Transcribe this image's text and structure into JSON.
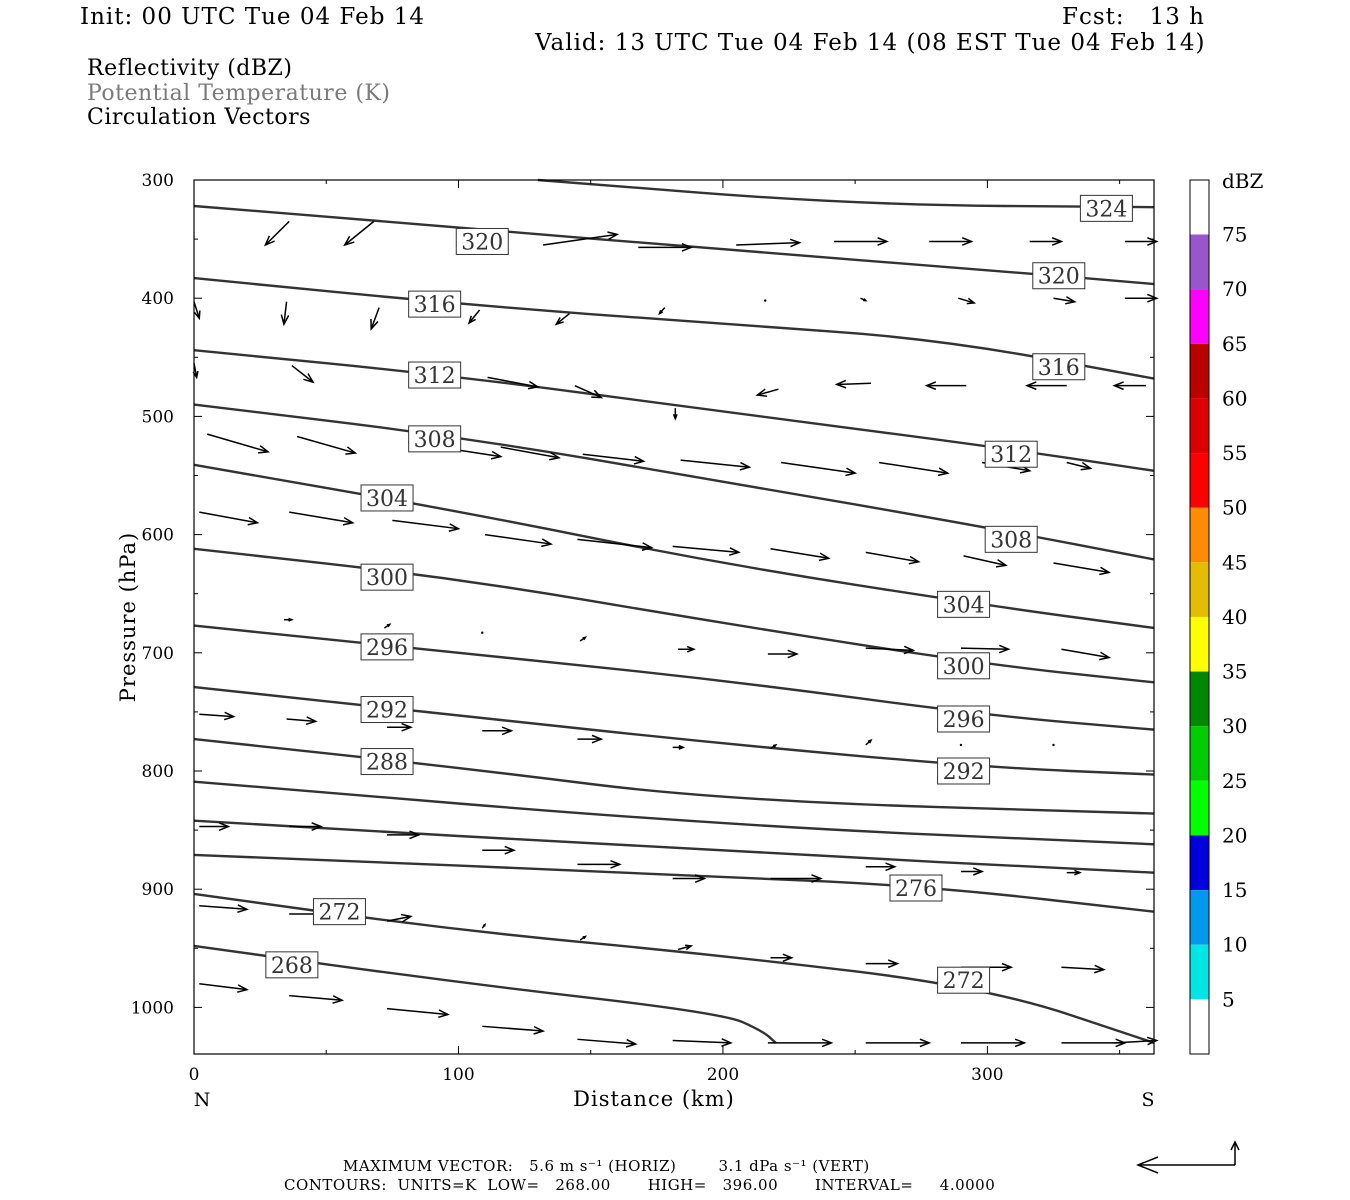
{
  "header": {
    "init": "Init: 00 UTC Tue 04 Feb 14",
    "fcst": "Fcst:   13 h",
    "valid": "Valid: 13 UTC Tue 04 Feb 14 (08 EST Tue 04 Feb 14)"
  },
  "legend_fields": [
    {
      "label": "Reflectivity (dBZ)",
      "color": "#000000"
    },
    {
      "label": "Potential Temperature (K)",
      "color": "#7a7a7a"
    },
    {
      "label": "Circulation Vectors",
      "color": "#000000"
    }
  ],
  "footer": {
    "max_vector": "MAXIMUM VECTOR:   5.6 m s⁻¹ (HORIZ)        3.1 dPa s⁻¹ (VERT)",
    "contours": "CONTOURS:  UNITS=K  LOW=   268.00       HIGH=   396.00       INTERVAL=     4.0000"
  },
  "chart_data": {
    "type": "cross-section",
    "xlabel": "Distance (km)",
    "ylabel": "Pressure (hPa)",
    "xlim": [
      0,
      363
    ],
    "ylim": [
      1030,
      300
    ],
    "x_ticks": [
      0,
      100,
      200,
      300
    ],
    "y_ticks": [
      300,
      400,
      500,
      600,
      700,
      800,
      900,
      1000
    ],
    "left_end_label": "N",
    "right_end_label": "S",
    "colorbar": {
      "title": "dBZ",
      "labels": [
        "5",
        "10",
        "15",
        "20",
        "25",
        "30",
        "35",
        "40",
        "45",
        "50",
        "55",
        "60",
        "65",
        "70",
        "75"
      ],
      "colors": [
        "#ffffff",
        "#00e5e5",
        "#0099ee",
        "#0000dd",
        "#00ff00",
        "#00cc00",
        "#008800",
        "#ffff00",
        "#e5bc00",
        "#ff8c00",
        "#ff0000",
        "#dd0000",
        "#bb0000",
        "#ff00ff",
        "#9955cc",
        "#ffffff"
      ]
    },
    "theta_contours": [
      {
        "theta": 324,
        "points": [
          [
            130,
            300
          ],
          [
            250,
            321
          ],
          [
            363,
            323
          ]
        ],
        "labels": [
          [
            345,
            324
          ]
        ]
      },
      {
        "theta": 320,
        "points": [
          [
            0,
            322
          ],
          [
            100,
            340
          ],
          [
            200,
            359
          ],
          [
            300,
            376
          ],
          [
            363,
            388
          ]
        ],
        "labels": [
          [
            109,
            352
          ],
          [
            327,
            381
          ]
        ]
      },
      {
        "theta": 316,
        "points": [
          [
            0,
            383
          ],
          [
            100,
            405
          ],
          [
            200,
            422
          ],
          [
            280,
            434
          ],
          [
            363,
            468
          ]
        ],
        "labels": [
          [
            91,
            405
          ],
          [
            327,
            458
          ]
        ]
      },
      {
        "theta": 312,
        "points": [
          [
            0,
            444
          ],
          [
            100,
            466
          ],
          [
            200,
            496
          ],
          [
            300,
            525
          ],
          [
            363,
            546
          ]
        ],
        "labels": [
          [
            91,
            465
          ],
          [
            309,
            532
          ]
        ]
      },
      {
        "theta": 308,
        "points": [
          [
            0,
            490
          ],
          [
            100,
            517
          ],
          [
            200,
            555
          ],
          [
            300,
            594
          ],
          [
            363,
            621
          ]
        ],
        "labels": [
          [
            91,
            519
          ],
          [
            309,
            604
          ]
        ]
      },
      {
        "theta": 304,
        "points": [
          [
            0,
            541
          ],
          [
            100,
            580
          ],
          [
            200,
            625
          ],
          [
            300,
            660
          ],
          [
            363,
            679
          ]
        ],
        "labels": [
          [
            73,
            569
          ],
          [
            291,
            659
          ]
        ]
      },
      {
        "theta": 300,
        "points": [
          [
            0,
            612
          ],
          [
            100,
            637
          ],
          [
            200,
            675
          ],
          [
            300,
            710
          ],
          [
            363,
            725
          ]
        ],
        "labels": [
          [
            73,
            636
          ],
          [
            291,
            711
          ]
        ]
      },
      {
        "theta": 296,
        "points": [
          [
            0,
            677
          ],
          [
            100,
            700
          ],
          [
            200,
            723
          ],
          [
            300,
            753
          ],
          [
            363,
            765
          ]
        ],
        "labels": [
          [
            73,
            695
          ],
          [
            291,
            756
          ]
        ]
      },
      {
        "theta": 292,
        "points": [
          [
            0,
            729
          ],
          [
            100,
            753
          ],
          [
            200,
            777
          ],
          [
            300,
            797
          ],
          [
            363,
            803
          ]
        ],
        "labels": [
          [
            73,
            748
          ],
          [
            291,
            800
          ]
        ]
      },
      {
        "theta": 288,
        "points": [
          [
            0,
            773
          ],
          [
            100,
            797
          ],
          [
            200,
            825
          ],
          [
            363,
            836
          ]
        ],
        "labels": [
          [
            73,
            792
          ]
        ]
      },
      {
        "theta": 284,
        "points": [
          [
            0,
            809
          ],
          [
            200,
            846
          ],
          [
            363,
            862
          ]
        ],
        "labels": []
      },
      {
        "theta": 280,
        "points": [
          [
            0,
            842
          ],
          [
            200,
            868
          ],
          [
            363,
            886
          ]
        ],
        "labels": []
      },
      {
        "theta": 276,
        "points": [
          [
            0,
            871
          ],
          [
            200,
            889
          ],
          [
            280,
            898
          ],
          [
            363,
            919
          ]
        ],
        "labels": [
          [
            273,
            899
          ]
        ]
      },
      {
        "theta": 272,
        "points": [
          [
            0,
            904
          ],
          [
            100,
            935
          ],
          [
            200,
            956
          ],
          [
            300,
            983
          ],
          [
            363,
            1030
          ]
        ],
        "labels": [
          [
            55,
            919
          ],
          [
            291,
            977
          ]
        ]
      },
      {
        "theta": 268,
        "points": [
          [
            0,
            948
          ],
          [
            100,
            979
          ],
          [
            200,
            1005
          ],
          [
            215,
            1020
          ],
          [
            220,
            1030
          ]
        ],
        "labels": [
          [
            37,
            964
          ]
        ]
      }
    ],
    "vectors_note": "circulation vectors (dx km, dp hPa) sampled on grid",
    "vectors": [
      [
        36,
        335,
        -9,
        20
      ],
      [
        68,
        335,
        -11,
        20
      ],
      [
        132,
        355,
        28,
        -9
      ],
      [
        168,
        357,
        20,
        0
      ],
      [
        205,
        355,
        24,
        -2
      ],
      [
        242,
        352,
        20,
        0
      ],
      [
        278,
        352,
        16,
        0
      ],
      [
        316,
        352,
        12,
        0
      ],
      [
        352,
        352,
        12,
        0
      ],
      [
        0,
        403,
        2,
        14
      ],
      [
        35,
        403,
        -1,
        19
      ],
      [
        70,
        408,
        -3,
        18
      ],
      [
        108,
        410,
        -4,
        11
      ],
      [
        142,
        413,
        -5,
        9
      ],
      [
        178,
        408,
        -2,
        5
      ],
      [
        216,
        402,
        0,
        1
      ],
      [
        252,
        400,
        2,
        2
      ],
      [
        289,
        400,
        6,
        4
      ],
      [
        325,
        400,
        8,
        3
      ],
      [
        352,
        400,
        12,
        0
      ],
      [
        0,
        455,
        1,
        12
      ],
      [
        37,
        457,
        8,
        14
      ],
      [
        111,
        467,
        19,
        8
      ],
      [
        144,
        474,
        10,
        10
      ],
      [
        182,
        493,
        0,
        9
      ],
      [
        221,
        477,
        -8,
        5
      ],
      [
        256,
        472,
        -13,
        1
      ],
      [
        292,
        474,
        -15,
        0
      ],
      [
        330,
        474,
        -15,
        0
      ],
      [
        360,
        474,
        -12,
        0
      ],
      [
        5,
        515,
        23,
        15
      ],
      [
        39,
        517,
        22,
        14
      ],
      [
        81,
        522,
        35,
        12
      ],
      [
        116,
        526,
        22,
        9
      ],
      [
        147,
        532,
        23,
        6
      ],
      [
        184,
        537,
        26,
        6
      ],
      [
        222,
        539,
        28,
        9
      ],
      [
        259,
        539,
        26,
        9
      ],
      [
        298,
        539,
        18,
        7
      ],
      [
        330,
        539,
        9,
        5
      ],
      [
        2,
        581,
        22,
        9
      ],
      [
        36,
        581,
        24,
        9
      ],
      [
        75,
        588,
        25,
        7
      ],
      [
        110,
        600,
        25,
        8
      ],
      [
        145,
        604,
        28,
        7
      ],
      [
        181,
        610,
        25,
        5
      ],
      [
        218,
        612,
        22,
        8
      ],
      [
        254,
        615,
        20,
        8
      ],
      [
        291,
        618,
        16,
        8
      ],
      [
        325,
        624,
        21,
        8
      ],
      [
        34,
        672,
        3,
        0
      ],
      [
        72,
        679,
        2,
        -3
      ],
      [
        109,
        683,
        1,
        0
      ],
      [
        146,
        690,
        2,
        -3
      ],
      [
        183,
        697,
        6,
        0
      ],
      [
        217,
        701,
        11,
        0
      ],
      [
        254,
        696,
        18,
        2
      ],
      [
        290,
        696,
        18,
        1
      ],
      [
        328,
        697,
        18,
        7
      ],
      [
        2,
        752,
        13,
        2
      ],
      [
        35,
        756,
        11,
        2
      ],
      [
        73,
        763,
        9,
        0
      ],
      [
        109,
        766,
        11,
        0
      ],
      [
        145,
        773,
        9,
        0
      ],
      [
        181,
        780,
        4,
        0
      ],
      [
        218,
        781,
        2,
        -3
      ],
      [
        254,
        778,
        2,
        -4
      ],
      [
        290,
        778,
        0,
        0
      ],
      [
        325,
        778,
        1,
        1
      ],
      [
        2,
        847,
        11,
        0
      ],
      [
        36,
        847,
        12,
        0
      ],
      [
        73,
        854,
        12,
        0
      ],
      [
        109,
        867,
        12,
        0
      ],
      [
        145,
        879,
        16,
        0
      ],
      [
        181,
        891,
        12,
        0
      ],
      [
        218,
        891,
        19,
        0
      ],
      [
        254,
        881,
        11,
        0
      ],
      [
        290,
        885,
        8,
        0
      ],
      [
        330,
        886,
        5,
        0
      ],
      [
        2,
        914,
        18,
        3
      ],
      [
        36,
        921,
        14,
        0
      ],
      [
        73,
        927,
        9,
        -4
      ],
      [
        109,
        933,
        1,
        -3
      ],
      [
        146,
        943,
        2,
        -3
      ],
      [
        183,
        951,
        5,
        -3
      ],
      [
        218,
        958,
        8,
        0
      ],
      [
        254,
        963,
        12,
        0
      ],
      [
        290,
        966,
        19,
        0
      ],
      [
        328,
        966,
        16,
        2
      ],
      [
        2,
        980,
        18,
        5
      ],
      [
        36,
        990,
        20,
        4
      ],
      [
        73,
        1001,
        23,
        5
      ],
      [
        109,
        1016,
        23,
        4
      ],
      [
        145,
        1027,
        22,
        4
      ],
      [
        181,
        1028,
        22,
        2
      ],
      [
        217,
        1030,
        24,
        0
      ],
      [
        254,
        1030,
        24,
        0
      ],
      [
        290,
        1030,
        24,
        0
      ],
      [
        328,
        1030,
        24,
        0
      ],
      [
        348,
        1030,
        16,
        -2
      ]
    ]
  }
}
